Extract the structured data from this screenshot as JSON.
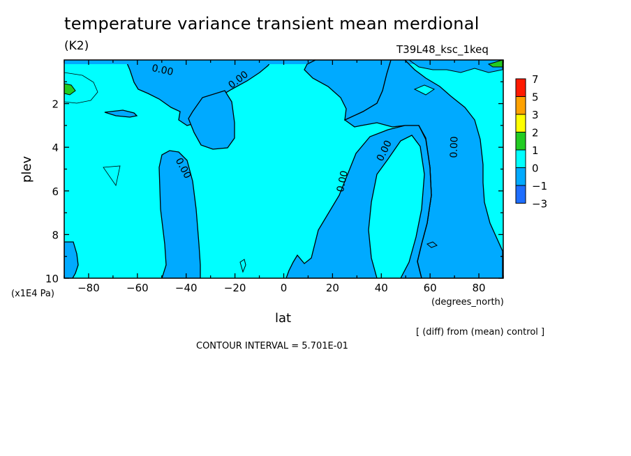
{
  "chart_data": {
    "type": "contour",
    "title": "temperature variance transient mean merdional",
    "units": "(K2)",
    "run_label": "T39L48_ksc_1keq",
    "xlabel": "lat",
    "ylabel": "plev",
    "x_units": "(degrees_north)",
    "y_units": "(x1E4 Pa)",
    "xlim": [
      -90,
      90
    ],
    "ylim": [
      10,
      0
    ],
    "x_ticks": [
      -80,
      -60,
      -40,
      -20,
      0,
      20,
      40,
      60,
      80
    ],
    "y_ticks": [
      2,
      4,
      6,
      8,
      10
    ],
    "contour_labels": [
      "0.00",
      "0.00",
      "0.00",
      "0.00",
      "0.00",
      "0.00"
    ],
    "colorbar": {
      "labels": [
        "7",
        "5",
        "3",
        "2",
        "1",
        "0",
        "−1",
        "−3"
      ],
      "colors": [
        "#ff1a00",
        "#ffa200",
        "#ffff00",
        "#22cc22",
        "#00ffff",
        "#00aaff",
        "#1e6eff"
      ]
    },
    "footnote": "[ (diff) from (mean) control ]",
    "contour_interval": "CONTOUR INTERVAL = 5.701E-01"
  }
}
